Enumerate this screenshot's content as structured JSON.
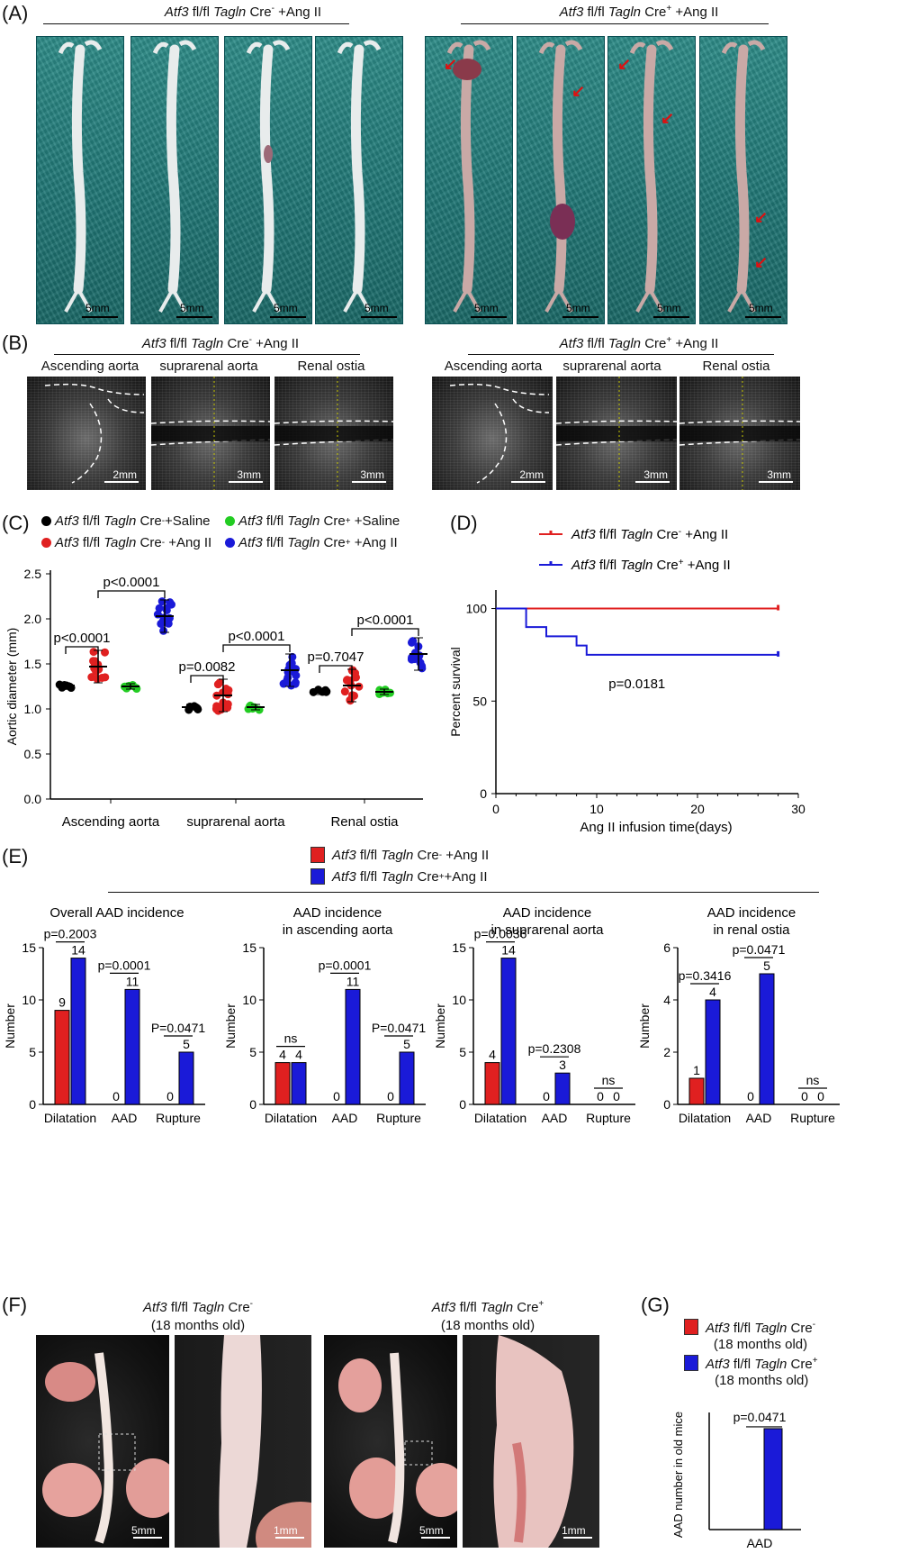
{
  "panels": {
    "A": "(A)",
    "B": "(B)",
    "C": "(C)",
    "D": "(D)",
    "E": "(E)",
    "F": "(F)",
    "G": "(G)"
  },
  "genotypes": {
    "gene": "Atf3",
    "floxed": "fl/fl",
    "driver": "Tagln",
    "cre": "Cre",
    "neg": "-",
    "pos": "+",
    "angii_suffix": "+Ang II",
    "saline_suffix": "+Saline",
    "angii_suffix_b": "+Ang II",
    "old_age": "(18 months old)"
  },
  "panel_a": {
    "scale_label": "5mm"
  },
  "panel_b": {
    "regions": [
      "Ascending aorta",
      "suprarenal aorta",
      "Renal ostia"
    ],
    "scales": [
      "2mm",
      "3mm",
      "3mm"
    ]
  },
  "panel_c": {
    "chart_data": {
      "type": "scatter",
      "ylabel": "Aortic diameter (mm)",
      "ylim": [
        0,
        2.5
      ],
      "yticks": [
        "0.0",
        "0.5",
        "1.0",
        "1.5",
        "2.0",
        "2.5"
      ],
      "categories": [
        "Ascending aorta",
        "suprarenal aorta",
        "Renal ostia"
      ],
      "series": [
        {
          "name": "Atf3 fl/fl Tagln Cre- +Saline",
          "color": "#000000",
          "means": [
            1.26,
            1.02,
            1.19
          ]
        },
        {
          "name": "Atf3 fl/fl Tagln Cre- +Ang II",
          "color": "#e02020",
          "means": [
            1.47,
            1.15,
            1.26
          ]
        },
        {
          "name": "Atf3 fl/fl Tagln Cre+ +Saline",
          "color": "#22cc22",
          "means": [
            1.25,
            1.02,
            1.19
          ]
        },
        {
          "name": "Atf3 fl/fl Tagln Cre+ +Ang II",
          "color": "#1a1ad8",
          "means": [
            2.03,
            1.43,
            1.61
          ]
        }
      ],
      "comparisons": [
        {
          "category": "Ascending aorta",
          "label": "p<0.0001",
          "pair": "saline-vs-angii-neg"
        },
        {
          "category": "Ascending aorta",
          "label": "p<0.0001",
          "pair": "angii-neg-vs-angii-pos"
        },
        {
          "category": "suprarenal aorta",
          "label": "p=0.0082",
          "pair": "saline-vs-angii-neg"
        },
        {
          "category": "suprarenal aorta",
          "label": "p<0.0001",
          "pair": "angii-neg-vs-angii-pos"
        },
        {
          "category": "Renal ostia",
          "label": "p=0.7047",
          "pair": "saline-vs-angii-neg"
        },
        {
          "category": "Renal ostia",
          "label": "p<0.0001",
          "pair": "angii-neg-vs-angii-pos"
        }
      ]
    }
  },
  "panel_d": {
    "chart_data": {
      "type": "line",
      "xlabel": "Ang II infusion time(days)",
      "ylabel": "Percent survival",
      "xlim": [
        0,
        30
      ],
      "ylim": [
        0,
        110
      ],
      "xticks": [
        "0",
        "10",
        "20",
        "30"
      ],
      "yticks": [
        "0",
        "50",
        "100"
      ],
      "series": [
        {
          "name": "Atf3 fl/fl Tagln Cre- +Ang II",
          "color": "#e02020",
          "x": [
            0,
            28
          ],
          "y": [
            100,
            100
          ]
        },
        {
          "name": "Atf3 fl/fl Tagln Cre+ +Ang II",
          "color": "#1a1ad8",
          "x": [
            0,
            3,
            3,
            5,
            5,
            8,
            8,
            9,
            9,
            28
          ],
          "y": [
            100,
            100,
            90,
            90,
            85,
            85,
            80,
            80,
            75,
            75
          ]
        }
      ],
      "annotation": "p=0.0181"
    }
  },
  "panel_e": {
    "chart_data": [
      {
        "type": "bar",
        "title": "Overall AAD incidence",
        "ylabel": "Number",
        "categories": [
          "Dilatation",
          "AAD",
          "Rupture"
        ],
        "ylim": [
          0,
          15
        ],
        "yticks": [
          "0",
          "5",
          "10",
          "15"
        ],
        "series": [
          {
            "name": "Atf3 fl/fl Tagln Cre- +Ang II",
            "values": [
              9,
              0,
              0
            ]
          },
          {
            "name": "Atf3 fl/fl Tagln Cre+ +Ang II",
            "values": [
              14,
              11,
              5
            ]
          }
        ],
        "pvalues": [
          "p=0.2003",
          "p=0.0001",
          "P=0.0471"
        ]
      },
      {
        "type": "bar",
        "title": "AAD incidence in ascending aorta",
        "ylabel": "Number",
        "categories": [
          "Dilatation",
          "AAD",
          "Rupture"
        ],
        "ylim": [
          0,
          15
        ],
        "yticks": [
          "0",
          "5",
          "10",
          "15"
        ],
        "series": [
          {
            "name": "Atf3 fl/fl Tagln Cre- +Ang II",
            "values": [
              4,
              0,
              0
            ]
          },
          {
            "name": "Atf3 fl/fl Tagln Cre+ +Ang II",
            "values": [
              4,
              11,
              5
            ]
          }
        ],
        "pvalues": [
          "ns",
          "p=0.0001",
          "P=0.0471"
        ]
      },
      {
        "type": "bar",
        "title": "AAD incidence in suprarenal aorta",
        "ylabel": "Number",
        "categories": [
          "Dilatation",
          "AAD",
          "Rupture"
        ],
        "ylim": [
          0,
          15
        ],
        "yticks": [
          "0",
          "5",
          "10",
          "15"
        ],
        "series": [
          {
            "name": "Atf3 fl/fl Tagln Cre- +Ang II",
            "values": [
              4,
              0,
              0
            ]
          },
          {
            "name": "Atf3 fl/fl Tagln Cre+ +Ang II",
            "values": [
              14,
              3,
              0
            ]
          }
        ],
        "pvalues": [
          "p=0.0036",
          "p=0.2308",
          "ns"
        ]
      },
      {
        "type": "bar",
        "title": "AAD incidence in renal ostia",
        "ylabel": "Number",
        "categories": [
          "Dilatation",
          "AAD",
          "Rupture"
        ],
        "ylim": [
          0,
          6
        ],
        "yticks": [
          "0",
          "2",
          "4",
          "6"
        ],
        "series": [
          {
            "name": "Atf3 fl/fl Tagln Cre- +Ang II",
            "values": [
              1,
              0,
              0
            ]
          },
          {
            "name": "Atf3 fl/fl Tagln Cre+ +Ang II",
            "values": [
              4,
              5,
              0
            ]
          }
        ],
        "pvalues": [
          "p=0.3416",
          "p=0.0471",
          "ns"
        ]
      }
    ]
  },
  "panel_e_titles": [
    [
      "Overall AAD incidence",
      ""
    ],
    [
      "AAD incidence",
      "in ascending aorta"
    ],
    [
      "AAD incidence",
      "in suprarenal aorta"
    ],
    [
      "AAD incidence",
      "in renal ostia"
    ]
  ],
  "panel_f": {
    "scales": [
      "5mm",
      "1mm",
      "5mm",
      "1mm"
    ]
  },
  "panel_g": {
    "chart_data": {
      "type": "bar",
      "ylabel": "AAD number in old mice",
      "categories": [
        "AAD"
      ],
      "series": [
        {
          "name": "Atf3 fl/fl Tagln Cre- (18 months old)",
          "values": [
            0
          ]
        },
        {
          "name": "Atf3 fl/fl Tagln Cre+ (18 months old)",
          "values": [
            5
          ]
        }
      ],
      "pvalue": "p=0.0471"
    }
  },
  "colors": {
    "red": "#e02020",
    "blue": "#1a1ad8",
    "green": "#22cc22",
    "black": "#000000"
  }
}
